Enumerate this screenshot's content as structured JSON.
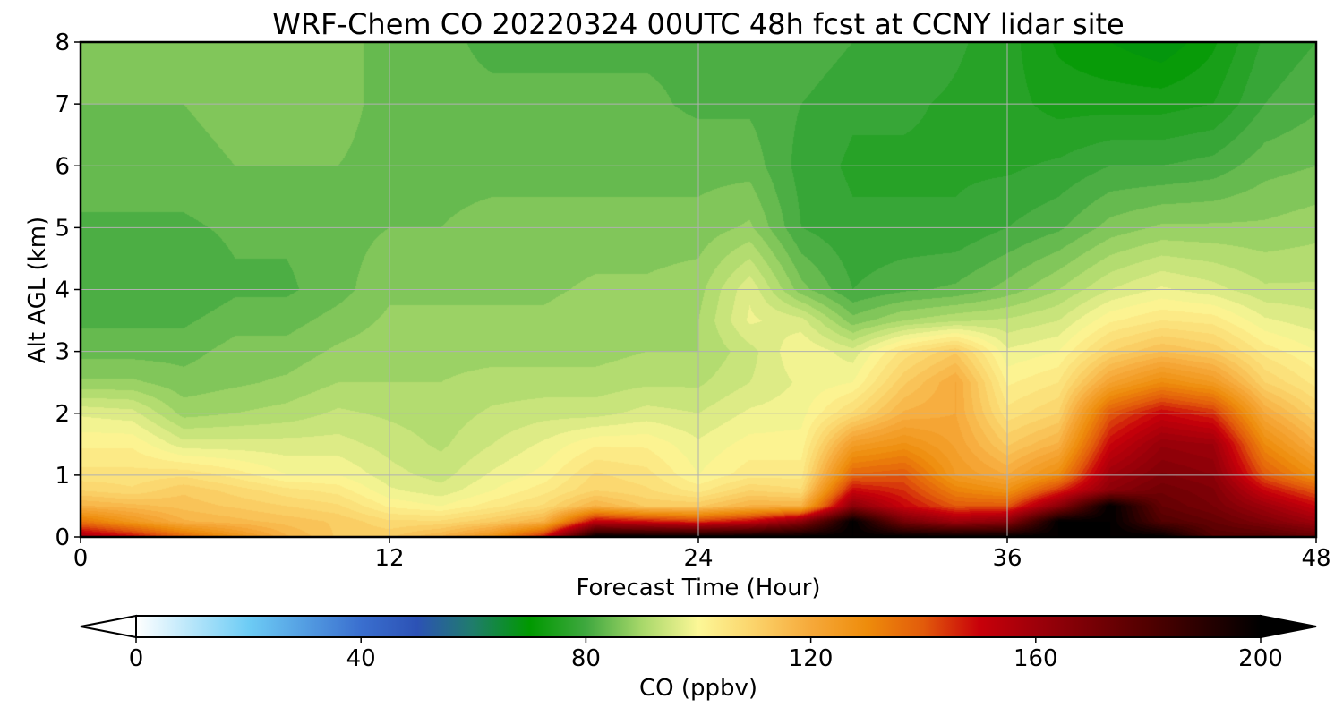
{
  "chart_data": {
    "type": "heatmap",
    "title": "WRF-Chem CO  20220324 00UTC 48h fcst at CCNY lidar site",
    "xlabel": "Forecast Time (Hour)",
    "ylabel": "Alt AGL (km)",
    "xlim": [
      0,
      48
    ],
    "ylim": [
      0,
      8
    ],
    "xticks": [
      0,
      12,
      24,
      36,
      48
    ],
    "yticks": [
      0,
      1,
      2,
      3,
      4,
      5,
      6,
      7,
      8
    ],
    "grid": true,
    "x_hours": [
      0,
      2,
      4,
      6,
      8,
      10,
      12,
      14,
      16,
      18,
      20,
      22,
      24,
      26,
      28,
      30,
      32,
      34,
      36,
      38,
      40,
      42,
      44,
      46,
      48
    ],
    "altitudes_km": [
      0,
      0.25,
      0.5,
      0.75,
      1,
      1.5,
      2,
      2.5,
      3,
      3.5,
      4,
      5,
      6,
      7,
      8
    ],
    "co_ppbv_by_time": [
      [
        158,
        135,
        118,
        110,
        106,
        102,
        97,
        88,
        84,
        82,
        81,
        82,
        84,
        85,
        86
      ],
      [
        150,
        126,
        116,
        108,
        106,
        102,
        96,
        88,
        84,
        82,
        81,
        82,
        84,
        85,
        86
      ],
      [
        138,
        118,
        114,
        112,
        107,
        96,
        89,
        86,
        84,
        82,
        80,
        82,
        84,
        85,
        86
      ],
      [
        128,
        116,
        112,
        109,
        104,
        96,
        90,
        87,
        86,
        84,
        82,
        83,
        85,
        86,
        86
      ],
      [
        118,
        114,
        110,
        106,
        100,
        96,
        91,
        88,
        86,
        84,
        82,
        83,
        85,
        86,
        86
      ],
      [
        112,
        112,
        108,
        104,
        100,
        96,
        93,
        90,
        88,
        86,
        84,
        84,
        85,
        86,
        86
      ],
      [
        112,
        108,
        102,
        98,
        96,
        94,
        92,
        90,
        89,
        88,
        87,
        85,
        84,
        84,
        84
      ],
      [
        118,
        108,
        100,
        96,
        94,
        92,
        91,
        90,
        89,
        88,
        87,
        85,
        84,
        83,
        83
      ],
      [
        128,
        112,
        104,
        100,
        98,
        95,
        93,
        91,
        89,
        88,
        87,
        86,
        84,
        83,
        82
      ],
      [
        148,
        118,
        108,
        104,
        101,
        98,
        94,
        91,
        89,
        88,
        87,
        86,
        84,
        83,
        82
      ],
      [
        200,
        152,
        118,
        110,
        108,
        102,
        94,
        91,
        89,
        89,
        88,
        86,
        84,
        83,
        82
      ],
      [
        200,
        148,
        112,
        108,
        106,
        102,
        96,
        92,
        90,
        89,
        88,
        86,
        84,
        83,
        82
      ],
      [
        200,
        144,
        112,
        104,
        100,
        98,
        95,
        92,
        90,
        90,
        89,
        86,
        84,
        82,
        82
      ],
      [
        200,
        150,
        118,
        110,
        104,
        101,
        98,
        95,
        94,
        98,
        97,
        88,
        84,
        82,
        82
      ],
      [
        200,
        165,
        118,
        108,
        104,
        101,
        99,
        98,
        100,
        96,
        86,
        80,
        79,
        80,
        82
      ],
      [
        200,
        200,
        165,
        150,
        138,
        124,
        108,
        100,
        96,
        86,
        80,
        78,
        77,
        78,
        80
      ],
      [
        200,
        170,
        150,
        145,
        140,
        128,
        118,
        112,
        106,
        90,
        82,
        78,
        77,
        78,
        80
      ],
      [
        200,
        160,
        140,
        132,
        125,
        122,
        120,
        120,
        112,
        92,
        83,
        78,
        77,
        77,
        78
      ],
      [
        200,
        165,
        140,
        128,
        120,
        112,
        106,
        102,
        98,
        93,
        86,
        80,
        77,
        76,
        76
      ],
      [
        200,
        200,
        165,
        145,
        130,
        118,
        110,
        105,
        100,
        95,
        90,
        82,
        78,
        74,
        72
      ],
      [
        200,
        200,
        200,
        165,
        160,
        150,
        140,
        122,
        110,
        102,
        95,
        86,
        80,
        74,
        70
      ],
      [
        200,
        180,
        175,
        172,
        168,
        162,
        150,
        130,
        115,
        105,
        98,
        88,
        80,
        74,
        68
      ],
      [
        180,
        175,
        170,
        168,
        165,
        160,
        145,
        125,
        112,
        104,
        96,
        88,
        81,
        75,
        72
      ],
      [
        180,
        168,
        160,
        150,
        140,
        130,
        120,
        110,
        104,
        98,
        93,
        88,
        84,
        80,
        78
      ],
      [
        175,
        160,
        150,
        140,
        128,
        118,
        110,
        104,
        100,
        96,
        93,
        89,
        85,
        82,
        80
      ]
    ],
    "colorbar": {
      "label": "CO  (ppbv)",
      "min": 0,
      "max": 200,
      "ticks": [
        0,
        40,
        80,
        120,
        160,
        200
      ],
      "extend": "both",
      "color_stops": [
        {
          "v": 0,
          "c": "#ffffff"
        },
        {
          "v": 20,
          "c": "#6dccf5"
        },
        {
          "v": 40,
          "c": "#3a6fcf"
        },
        {
          "v": 50,
          "c": "#2c52b5"
        },
        {
          "v": 60,
          "c": "#1f7d6a"
        },
        {
          "v": 70,
          "c": "#009900"
        },
        {
          "v": 80,
          "c": "#3fa83f"
        },
        {
          "v": 90,
          "c": "#a8d86a"
        },
        {
          "v": 100,
          "c": "#fcf797"
        },
        {
          "v": 110,
          "c": "#fbd36a"
        },
        {
          "v": 120,
          "c": "#f6a93a"
        },
        {
          "v": 130,
          "c": "#ee8c0b"
        },
        {
          "v": 140,
          "c": "#e25b0b"
        },
        {
          "v": 150,
          "c": "#c8000a"
        },
        {
          "v": 160,
          "c": "#9e000a"
        },
        {
          "v": 180,
          "c": "#510000"
        },
        {
          "v": 200,
          "c": "#000000"
        }
      ]
    }
  }
}
